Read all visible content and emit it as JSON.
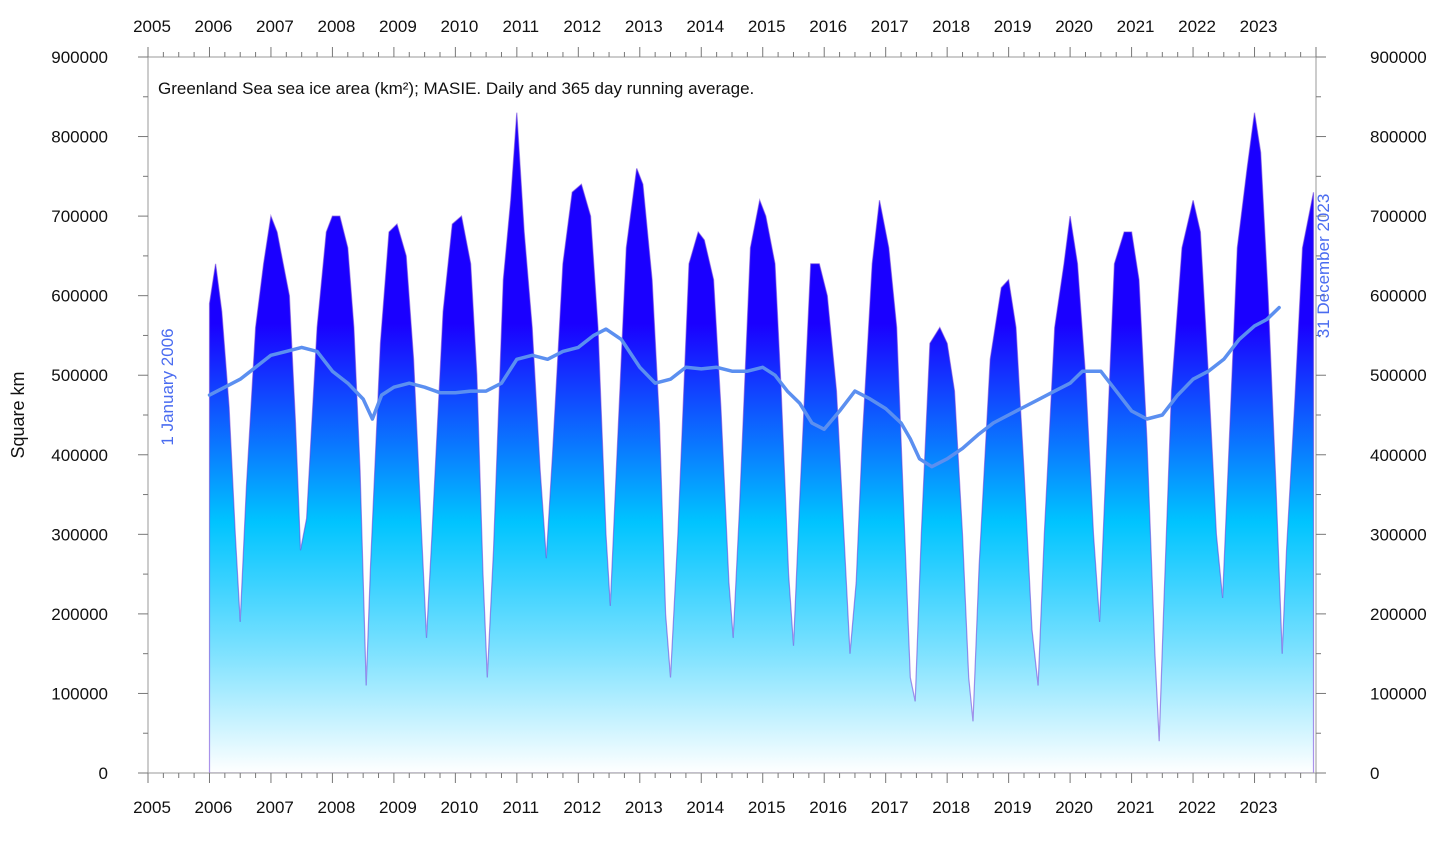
{
  "chart_data": {
    "type": "area",
    "title": "Greenland Sea sea ice area (km²); MASIE. Daily and 365 day running average.",
    "ylabel": "Square km",
    "xlabel": "",
    "ylim": [
      0,
      900000
    ],
    "xlim": [
      2005,
      2024
    ],
    "x_tick_labels": [
      "2005",
      "2006",
      "2007",
      "2008",
      "2009",
      "2010",
      "2011",
      "2012",
      "2013",
      "2014",
      "2015",
      "2016",
      "2017",
      "2018",
      "2019",
      "2020",
      "2021",
      "2022",
      "2023"
    ],
    "y_tick_labels_left": [
      "0",
      "100000",
      "200000",
      "300000",
      "400000",
      "500000",
      "600000",
      "700000",
      "800000",
      "900000"
    ],
    "y_tick_labels_right": [
      "0",
      "100000",
      "200000",
      "300000",
      "400000",
      "500000",
      "600000",
      "700000",
      "800000",
      "900000"
    ],
    "annotations": {
      "start": "1 January 2006",
      "end": "31 December 2023"
    },
    "grid": false,
    "legend": "none",
    "colors": {
      "daily_top": "#1a00ff",
      "daily_mid": "#00c4ff",
      "daily_bottom": "#ffffff",
      "running_average": "#5b8ff0",
      "daily_peak_tint": "#6a3bd8"
    },
    "series": [
      {
        "kind": "daily_area",
        "points": [
          [
            2006.0,
            590000
          ],
          [
            2006.1,
            640000
          ],
          [
            2006.2,
            580000
          ],
          [
            2006.32,
            460000
          ],
          [
            2006.42,
            300000
          ],
          [
            2006.5,
            190000
          ],
          [
            2006.6,
            360000
          ],
          [
            2006.75,
            560000
          ],
          [
            2006.88,
            640000
          ],
          [
            2007.0,
            700000
          ],
          [
            2007.1,
            680000
          ],
          [
            2007.2,
            640000
          ],
          [
            2007.3,
            600000
          ],
          [
            2007.4,
            440000
          ],
          [
            2007.48,
            280000
          ],
          [
            2007.58,
            320000
          ],
          [
            2007.75,
            560000
          ],
          [
            2007.9,
            680000
          ],
          [
            2008.0,
            700000
          ],
          [
            2008.12,
            700000
          ],
          [
            2008.25,
            660000
          ],
          [
            2008.35,
            560000
          ],
          [
            2008.45,
            380000
          ],
          [
            2008.55,
            110000
          ],
          [
            2008.62,
            260000
          ],
          [
            2008.78,
            540000
          ],
          [
            2008.92,
            680000
          ],
          [
            2009.05,
            690000
          ],
          [
            2009.2,
            650000
          ],
          [
            2009.32,
            520000
          ],
          [
            2009.45,
            300000
          ],
          [
            2009.53,
            170000
          ],
          [
            2009.62,
            300000
          ],
          [
            2009.8,
            580000
          ],
          [
            2009.95,
            690000
          ],
          [
            2010.1,
            700000
          ],
          [
            2010.25,
            640000
          ],
          [
            2010.35,
            500000
          ],
          [
            2010.45,
            250000
          ],
          [
            2010.52,
            120000
          ],
          [
            2010.62,
            280000
          ],
          [
            2010.78,
            620000
          ],
          [
            2010.9,
            720000
          ],
          [
            2011.0,
            830000
          ],
          [
            2011.12,
            680000
          ],
          [
            2011.25,
            560000
          ],
          [
            2011.38,
            380000
          ],
          [
            2011.48,
            270000
          ],
          [
            2011.58,
            400000
          ],
          [
            2011.75,
            640000
          ],
          [
            2011.9,
            730000
          ],
          [
            2012.05,
            740000
          ],
          [
            2012.2,
            700000
          ],
          [
            2012.32,
            560000
          ],
          [
            2012.45,
            300000
          ],
          [
            2012.52,
            210000
          ],
          [
            2012.6,
            350000
          ],
          [
            2012.78,
            660000
          ],
          [
            2012.95,
            760000
          ],
          [
            2013.05,
            740000
          ],
          [
            2013.2,
            620000
          ],
          [
            2013.32,
            440000
          ],
          [
            2013.42,
            200000
          ],
          [
            2013.5,
            120000
          ],
          [
            2013.62,
            300000
          ],
          [
            2013.8,
            640000
          ],
          [
            2013.95,
            680000
          ],
          [
            2014.05,
            670000
          ],
          [
            2014.2,
            620000
          ],
          [
            2014.32,
            460000
          ],
          [
            2014.45,
            240000
          ],
          [
            2014.52,
            170000
          ],
          [
            2014.62,
            330000
          ],
          [
            2014.8,
            660000
          ],
          [
            2014.95,
            720000
          ],
          [
            2015.05,
            700000
          ],
          [
            2015.2,
            640000
          ],
          [
            2015.3,
            480000
          ],
          [
            2015.42,
            250000
          ],
          [
            2015.5,
            160000
          ],
          [
            2015.6,
            340000
          ],
          [
            2015.78,
            640000
          ],
          [
            2015.92,
            640000
          ],
          [
            2016.05,
            600000
          ],
          [
            2016.2,
            480000
          ],
          [
            2016.32,
            300000
          ],
          [
            2016.42,
            150000
          ],
          [
            2016.52,
            240000
          ],
          [
            2016.62,
            420000
          ],
          [
            2016.78,
            640000
          ],
          [
            2016.9,
            720000
          ],
          [
            2017.05,
            660000
          ],
          [
            2017.18,
            560000
          ],
          [
            2017.3,
            320000
          ],
          [
            2017.4,
            120000
          ],
          [
            2017.48,
            90000
          ],
          [
            2017.58,
            300000
          ],
          [
            2017.72,
            540000
          ],
          [
            2017.88,
            560000
          ],
          [
            2018.0,
            540000
          ],
          [
            2018.12,
            480000
          ],
          [
            2018.25,
            300000
          ],
          [
            2018.35,
            120000
          ],
          [
            2018.42,
            65000
          ],
          [
            2018.52,
            260000
          ],
          [
            2018.7,
            520000
          ],
          [
            2018.88,
            610000
          ],
          [
            2019.0,
            620000
          ],
          [
            2019.12,
            560000
          ],
          [
            2019.25,
            380000
          ],
          [
            2019.38,
            180000
          ],
          [
            2019.48,
            110000
          ],
          [
            2019.58,
            300000
          ],
          [
            2019.75,
            560000
          ],
          [
            2019.9,
            640000
          ],
          [
            2020.0,
            700000
          ],
          [
            2020.12,
            640000
          ],
          [
            2020.25,
            500000
          ],
          [
            2020.38,
            300000
          ],
          [
            2020.48,
            190000
          ],
          [
            2020.58,
            380000
          ],
          [
            2020.72,
            640000
          ],
          [
            2020.88,
            680000
          ],
          [
            2021.0,
            680000
          ],
          [
            2021.12,
            620000
          ],
          [
            2021.25,
            420000
          ],
          [
            2021.38,
            150000
          ],
          [
            2021.45,
            40000
          ],
          [
            2021.52,
            200000
          ],
          [
            2021.65,
            480000
          ],
          [
            2021.82,
            660000
          ],
          [
            2022.0,
            720000
          ],
          [
            2022.12,
            680000
          ],
          [
            2022.25,
            500000
          ],
          [
            2022.38,
            300000
          ],
          [
            2022.48,
            220000
          ],
          [
            2022.58,
            400000
          ],
          [
            2022.72,
            660000
          ],
          [
            2022.88,
            760000
          ],
          [
            2023.0,
            830000
          ],
          [
            2023.1,
            780000
          ],
          [
            2023.22,
            600000
          ],
          [
            2023.35,
            360000
          ],
          [
            2023.45,
            150000
          ],
          [
            2023.52,
            280000
          ],
          [
            2023.65,
            460000
          ],
          [
            2023.78,
            660000
          ],
          [
            2023.96,
            730000
          ]
        ]
      },
      {
        "kind": "running_average",
        "points": [
          [
            2006.0,
            475000
          ],
          [
            2006.25,
            485000
          ],
          [
            2006.5,
            495000
          ],
          [
            2006.75,
            510000
          ],
          [
            2007.0,
            525000
          ],
          [
            2007.25,
            530000
          ],
          [
            2007.5,
            535000
          ],
          [
            2007.75,
            530000
          ],
          [
            2008.0,
            505000
          ],
          [
            2008.25,
            490000
          ],
          [
            2008.5,
            470000
          ],
          [
            2008.65,
            445000
          ],
          [
            2008.8,
            475000
          ],
          [
            2009.0,
            485000
          ],
          [
            2009.25,
            490000
          ],
          [
            2009.5,
            485000
          ],
          [
            2009.75,
            478000
          ],
          [
            2010.0,
            478000
          ],
          [
            2010.25,
            480000
          ],
          [
            2010.5,
            480000
          ],
          [
            2010.75,
            490000
          ],
          [
            2011.0,
            520000
          ],
          [
            2011.25,
            525000
          ],
          [
            2011.5,
            520000
          ],
          [
            2011.75,
            530000
          ],
          [
            2012.0,
            535000
          ],
          [
            2012.25,
            550000
          ],
          [
            2012.45,
            558000
          ],
          [
            2012.7,
            545000
          ],
          [
            2013.0,
            510000
          ],
          [
            2013.25,
            490000
          ],
          [
            2013.5,
            495000
          ],
          [
            2013.75,
            510000
          ],
          [
            2014.0,
            508000
          ],
          [
            2014.25,
            510000
          ],
          [
            2014.5,
            505000
          ],
          [
            2014.75,
            505000
          ],
          [
            2015.0,
            510000
          ],
          [
            2015.2,
            500000
          ],
          [
            2015.4,
            480000
          ],
          [
            2015.6,
            465000
          ],
          [
            2015.8,
            440000
          ],
          [
            2016.0,
            432000
          ],
          [
            2016.25,
            455000
          ],
          [
            2016.5,
            480000
          ],
          [
            2016.75,
            470000
          ],
          [
            2017.0,
            458000
          ],
          [
            2017.25,
            440000
          ],
          [
            2017.4,
            420000
          ],
          [
            2017.55,
            395000
          ],
          [
            2017.75,
            385000
          ],
          [
            2018.0,
            395000
          ],
          [
            2018.25,
            408000
          ],
          [
            2018.5,
            425000
          ],
          [
            2018.75,
            440000
          ],
          [
            2019.0,
            450000
          ],
          [
            2019.25,
            460000
          ],
          [
            2019.5,
            470000
          ],
          [
            2019.75,
            480000
          ],
          [
            2020.0,
            490000
          ],
          [
            2020.2,
            505000
          ],
          [
            2020.5,
            505000
          ],
          [
            2020.75,
            480000
          ],
          [
            2021.0,
            455000
          ],
          [
            2021.25,
            445000
          ],
          [
            2021.5,
            450000
          ],
          [
            2021.75,
            475000
          ],
          [
            2022.0,
            495000
          ],
          [
            2022.25,
            505000
          ],
          [
            2022.5,
            520000
          ],
          [
            2022.75,
            545000
          ],
          [
            2023.0,
            562000
          ],
          [
            2023.2,
            570000
          ],
          [
            2023.4,
            585000
          ]
        ]
      }
    ]
  }
}
